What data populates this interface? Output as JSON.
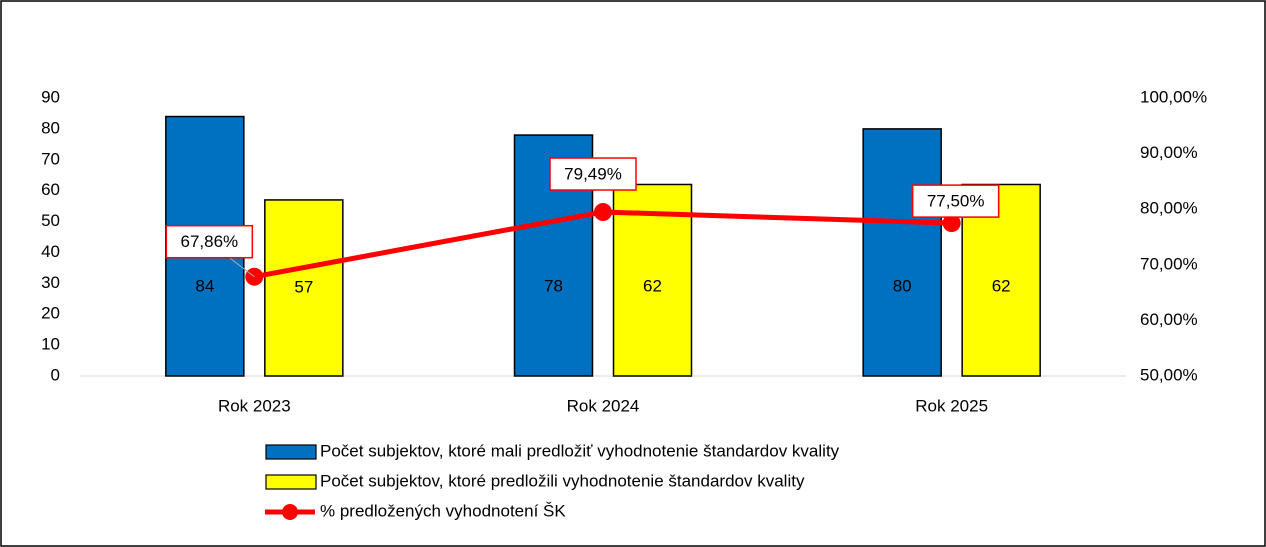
{
  "chart_data": {
    "type": "bar",
    "categories": [
      "Rok 2023",
      "Rok 2024",
      "Rok 2025"
    ],
    "series": [
      {
        "name": "Počet subjektov, ktoré mali predložiť vyhodnotenie štandardov kvality",
        "color": "#0070c0",
        "values": [
          84,
          78,
          80
        ]
      },
      {
        "name": "Počet subjektov, ktoré predložili vyhodnotenie štandardov kvality",
        "color": "#ffff00",
        "values": [
          57,
          62,
          62
        ]
      },
      {
        "name": "% predložených vyhodnotení ŠK",
        "type": "line",
        "axis": "y2",
        "color": "#ff0000",
        "values": [
          67.86,
          79.49,
          77.5
        ],
        "value_labels": [
          "67,86%",
          "79,49%",
          "77,50%"
        ]
      }
    ],
    "ylim": [
      0,
      90
    ],
    "yticks": [
      0,
      10,
      20,
      30,
      40,
      50,
      60,
      70,
      80,
      90
    ],
    "y2lim": [
      50,
      100
    ],
    "y2ticks": [
      {
        "value": 50,
        "label": "50,00%"
      },
      {
        "value": 60,
        "label": "60,00%"
      },
      {
        "value": 70,
        "label": "70,00%"
      },
      {
        "value": 80,
        "label": "80,00%"
      },
      {
        "value": 90,
        "label": "90,00%"
      },
      {
        "value": 100,
        "label": "100,00%"
      }
    ],
    "grid": false,
    "legend": "bottom"
  }
}
